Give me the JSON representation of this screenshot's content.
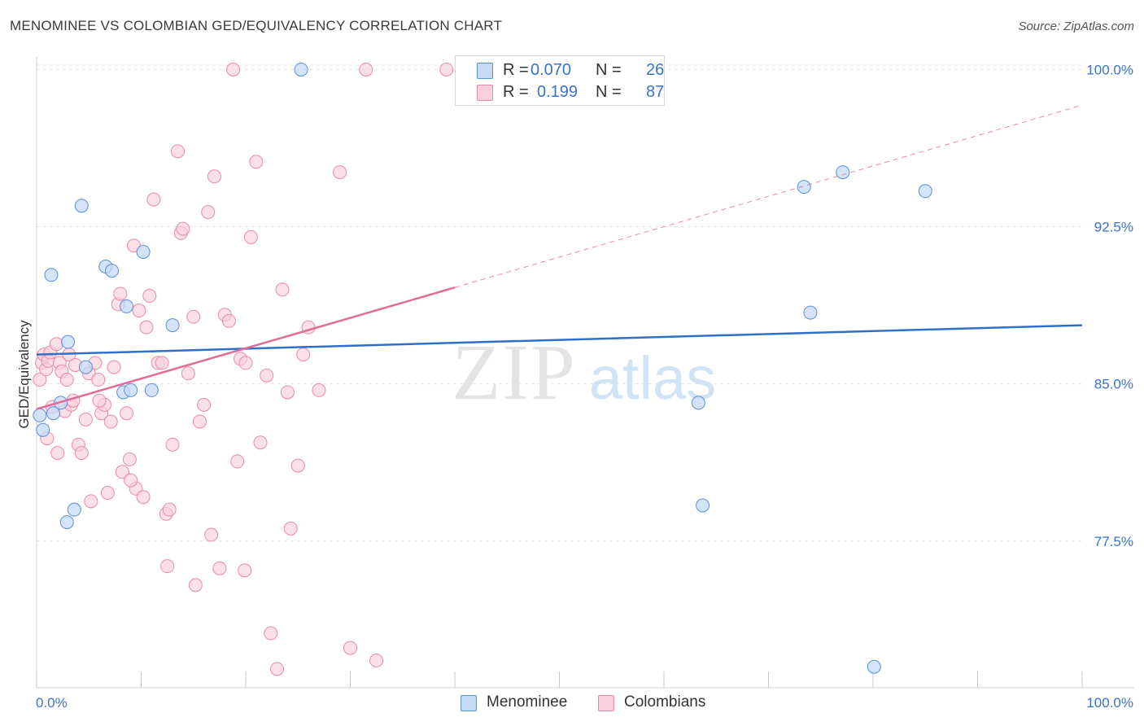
{
  "title": "MENOMINEE VS COLOMBIAN GED/EQUIVALENCY CORRELATION CHART",
  "source": "Source: ZipAtlas.com",
  "watermark": {
    "zip": "ZIP",
    "atlas": "atlas"
  },
  "legend": {
    "r_label": "R =",
    "n_label": "N =",
    "menominee": {
      "r": "0.070",
      "n": "26"
    },
    "colombians": {
      "r": "0.199",
      "n": "87"
    }
  },
  "colors": {
    "menominee_fill": "#c6daf5",
    "menominee_stroke": "#5b8fd6",
    "menominee_line": "#2f6fca",
    "colombians_fill": "#f9cfdc",
    "colombians_stroke": "#e88aa9",
    "colombians_line": "#e06d98",
    "tick_label": "#3a73c8",
    "grid": "#e3e3e3"
  },
  "chart_data": {
    "type": "scatter",
    "title": "MENOMINEE VS COLOMBIAN GED/EQUIVALENCY CORRELATION CHART",
    "xlabel": "",
    "ylabel": "GED/Equivalency",
    "xlim": [
      0,
      100
    ],
    "ylim": [
      70.5,
      100.6
    ],
    "x_tick_labels": [
      "0.0%",
      "100.0%"
    ],
    "y_ticks": [
      77.5,
      85.0,
      92.5,
      100.0
    ],
    "y_tick_labels": [
      "77.5%",
      "85.0%",
      "92.5%",
      "100.0%"
    ],
    "grid": true,
    "series": [
      {
        "name": "Menominee",
        "r": 0.07,
        "n": 26,
        "trend": {
          "x": [
            0,
            100
          ],
          "y": [
            86.4,
            87.8
          ],
          "dashed_from": null
        },
        "points": [
          [
            0.3,
            83.5
          ],
          [
            0.6,
            82.8
          ],
          [
            1.4,
            90.2
          ],
          [
            1.6,
            83.6
          ],
          [
            2.3,
            84.1
          ],
          [
            2.9,
            78.4
          ],
          [
            3.0,
            87.0
          ],
          [
            3.6,
            79.0
          ],
          [
            4.3,
            93.5
          ],
          [
            4.7,
            85.8
          ],
          [
            6.6,
            90.6
          ],
          [
            7.2,
            90.4
          ],
          [
            8.3,
            84.6
          ],
          [
            8.6,
            88.7
          ],
          [
            9.0,
            84.7
          ],
          [
            10.2,
            91.3
          ],
          [
            11.0,
            84.7
          ],
          [
            13.0,
            87.8
          ],
          [
            25.3,
            100.0
          ],
          [
            63.3,
            84.1
          ],
          [
            63.7,
            79.2
          ],
          [
            73.4,
            94.4
          ],
          [
            74.0,
            88.4
          ],
          [
            77.1,
            95.1
          ],
          [
            80.1,
            71.5
          ],
          [
            85.0,
            94.2
          ]
        ]
      },
      {
        "name": "Colombians",
        "r": 0.199,
        "n": 87,
        "trend": {
          "x": [
            0,
            100
          ],
          "y": [
            83.8,
            98.3
          ],
          "solid_until_x": 40.0
        },
        "points": [
          [
            0.3,
            85.2
          ],
          [
            0.5,
            86.0
          ],
          [
            0.7,
            86.4
          ],
          [
            0.9,
            85.7
          ],
          [
            1.1,
            86.1
          ],
          [
            1.3,
            86.5
          ],
          [
            1.5,
            83.9
          ],
          [
            1.9,
            86.9
          ],
          [
            2.2,
            86.0
          ],
          [
            2.4,
            85.6
          ],
          [
            2.7,
            83.7
          ],
          [
            2.9,
            85.2
          ],
          [
            3.1,
            86.4
          ],
          [
            3.3,
            84.0
          ],
          [
            3.7,
            85.9
          ],
          [
            4.0,
            82.1
          ],
          [
            4.3,
            81.7
          ],
          [
            4.7,
            83.3
          ],
          [
            5.0,
            85.5
          ],
          [
            5.2,
            79.4
          ],
          [
            5.6,
            86.0
          ],
          [
            5.9,
            85.2
          ],
          [
            6.2,
            83.6
          ],
          [
            6.5,
            84.0
          ],
          [
            6.8,
            79.8
          ],
          [
            7.1,
            83.2
          ],
          [
            7.4,
            85.8
          ],
          [
            7.8,
            88.8
          ],
          [
            8.0,
            89.3
          ],
          [
            8.2,
            80.8
          ],
          [
            8.6,
            83.6
          ],
          [
            8.9,
            81.4
          ],
          [
            9.3,
            91.6
          ],
          [
            9.5,
            80.0
          ],
          [
            9.8,
            88.5
          ],
          [
            10.2,
            79.6
          ],
          [
            10.5,
            87.7
          ],
          [
            10.8,
            89.2
          ],
          [
            11.2,
            93.8
          ],
          [
            11.6,
            86.0
          ],
          [
            12.0,
            86.0
          ],
          [
            12.4,
            78.8
          ],
          [
            12.7,
            79.0
          ],
          [
            13.0,
            82.1
          ],
          [
            13.5,
            96.1
          ],
          [
            13.8,
            92.2
          ],
          [
            14.0,
            92.4
          ],
          [
            14.5,
            85.5
          ],
          [
            15.0,
            88.2
          ],
          [
            15.2,
            75.4
          ],
          [
            15.6,
            83.2
          ],
          [
            16.0,
            84.0
          ],
          [
            16.4,
            93.2
          ],
          [
            16.7,
            77.8
          ],
          [
            17.0,
            94.9
          ],
          [
            17.5,
            76.2
          ],
          [
            18.0,
            88.3
          ],
          [
            18.4,
            88.0
          ],
          [
            18.8,
            100.0
          ],
          [
            19.2,
            81.3
          ],
          [
            19.5,
            86.2
          ],
          [
            19.9,
            76.1
          ],
          [
            20.5,
            92.0
          ],
          [
            21.0,
            95.6
          ],
          [
            21.4,
            82.2
          ],
          [
            22.0,
            85.4
          ],
          [
            22.4,
            73.1
          ],
          [
            23.0,
            71.4
          ],
          [
            23.5,
            89.5
          ],
          [
            24.0,
            84.6
          ],
          [
            24.3,
            78.1
          ],
          [
            25.0,
            81.1
          ],
          [
            25.5,
            86.4
          ],
          [
            26.0,
            87.7
          ],
          [
            27.0,
            84.7
          ],
          [
            29.0,
            95.1
          ],
          [
            30.0,
            72.4
          ],
          [
            31.5,
            100.0
          ],
          [
            32.5,
            71.8
          ],
          [
            39.2,
            100.0
          ],
          [
            1.0,
            82.4
          ],
          [
            2.0,
            81.7
          ],
          [
            3.5,
            84.2
          ],
          [
            6.0,
            84.2
          ],
          [
            9.0,
            80.4
          ],
          [
            12.5,
            76.3
          ],
          [
            20.0,
            86.0
          ]
        ]
      }
    ]
  }
}
